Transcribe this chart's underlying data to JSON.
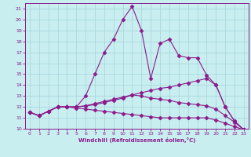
{
  "xlabel": "Windchill (Refroidissement éolien,°C)",
  "x": [
    0,
    1,
    2,
    3,
    4,
    5,
    6,
    7,
    8,
    9,
    10,
    11,
    12,
    13,
    14,
    15,
    16,
    17,
    18,
    19,
    20,
    21,
    22,
    23
  ],
  "line1": [
    11.5,
    11.2,
    11.6,
    12.0,
    12.0,
    12.0,
    13.0,
    15.0,
    17.0,
    18.2,
    20.0,
    21.2,
    19.0,
    14.6,
    17.8,
    18.2,
    16.7,
    16.5,
    16.5,
    14.9,
    14.0,
    12.0,
    10.7,
    9.9
  ],
  "line2": [
    11.5,
    11.2,
    11.6,
    12.0,
    12.0,
    12.0,
    12.1,
    12.2,
    12.4,
    12.6,
    12.8,
    13.1,
    13.3,
    13.5,
    13.7,
    13.8,
    14.0,
    14.2,
    14.4,
    14.6,
    14.0,
    12.0,
    10.7,
    9.9
  ],
  "line3": [
    11.5,
    11.2,
    11.6,
    12.0,
    12.0,
    11.9,
    11.8,
    11.7,
    11.6,
    11.5,
    11.4,
    11.3,
    11.2,
    11.1,
    11.0,
    11.0,
    11.0,
    11.0,
    11.0,
    11.0,
    10.8,
    10.5,
    10.2,
    9.9
  ],
  "line4": [
    11.5,
    11.2,
    11.6,
    12.0,
    12.0,
    12.0,
    12.1,
    12.3,
    12.5,
    12.7,
    12.9,
    13.1,
    13.0,
    12.8,
    12.7,
    12.6,
    12.4,
    12.3,
    12.2,
    12.1,
    11.8,
    11.2,
    10.6,
    9.9
  ],
  "line_color": "#8b1a8b",
  "bg_color": "#c8eef0",
  "grid_color": "#aad8dc",
  "ylim": [
    10,
    21.5
  ],
  "xlim": [
    -0.5,
    23.5
  ],
  "yticks": [
    10,
    11,
    12,
    13,
    14,
    15,
    16,
    17,
    18,
    19,
    20,
    21
  ],
  "xticks": [
    0,
    1,
    2,
    3,
    4,
    5,
    6,
    7,
    8,
    9,
    10,
    11,
    12,
    13,
    14,
    15,
    16,
    17,
    18,
    19,
    20,
    21,
    22,
    23
  ]
}
